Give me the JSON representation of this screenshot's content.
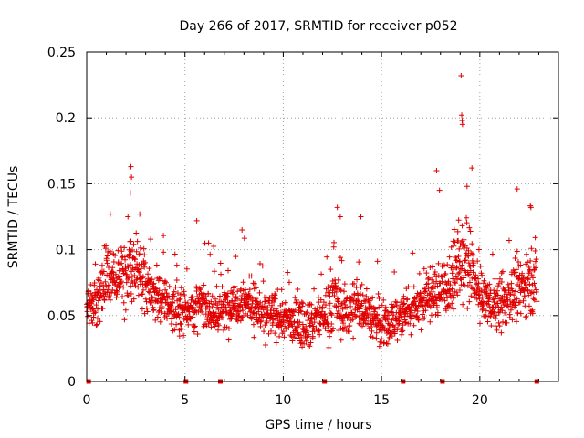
{
  "chart_data": {
    "type": "scatter",
    "title": "Day 266 of 2017, SRMTID for receiver p052",
    "xlabel": "GPS time / hours",
    "ylabel": "SRMTID / TECUs",
    "xlim": [
      0,
      24
    ],
    "ylim": [
      0,
      0.25
    ],
    "x_ticks": [
      0,
      5,
      10,
      15,
      20
    ],
    "x_tick_labels": [
      "0",
      "5",
      "10",
      "15",
      "20"
    ],
    "y_ticks": [
      0,
      0.05,
      0.1,
      0.15,
      0.2,
      0.25
    ],
    "y_tick_labels": [
      "0",
      "0.05",
      "0.1",
      "0.15",
      "0.2",
      "0.25"
    ],
    "grid": true,
    "marker": "+",
    "marker_color": "#e00000",
    "series": [
      {
        "name": "SRMTID",
        "profile_x": [
          0,
          0.3,
          0.7,
          1.0,
          1.3,
          1.7,
          2.0,
          2.3,
          2.6,
          3.0,
          3.5,
          4.0,
          4.5,
          5.0,
          5.5,
          6.0,
          6.5,
          7.0,
          7.5,
          8.0,
          8.5,
          9.0,
          9.5,
          10.0,
          10.5,
          11.0,
          11.5,
          12.0,
          12.3,
          12.6,
          13.0,
          13.5,
          14.0,
          14.5,
          15.0,
          15.5,
          16.0,
          16.5,
          17.0,
          17.5,
          18.0,
          18.5,
          19.0,
          19.5,
          20.0,
          20.5,
          21.0,
          21.5,
          22.0,
          22.5,
          22.9
        ],
        "profile_mean": [
          0.065,
          0.058,
          0.065,
          0.085,
          0.075,
          0.08,
          0.085,
          0.09,
          0.085,
          0.07,
          0.065,
          0.06,
          0.055,
          0.057,
          0.055,
          0.06,
          0.05,
          0.055,
          0.06,
          0.062,
          0.058,
          0.05,
          0.05,
          0.048,
          0.045,
          0.045,
          0.045,
          0.05,
          0.055,
          0.065,
          0.05,
          0.055,
          0.06,
          0.05,
          0.04,
          0.045,
          0.05,
          0.055,
          0.06,
          0.065,
          0.07,
          0.075,
          0.09,
          0.085,
          0.065,
          0.06,
          0.055,
          0.065,
          0.07,
          0.075,
          0.08
        ],
        "profile_spread": [
          0.012,
          0.012,
          0.014,
          0.018,
          0.016,
          0.016,
          0.02,
          0.018,
          0.018,
          0.014,
          0.012,
          0.012,
          0.012,
          0.012,
          0.012,
          0.012,
          0.012,
          0.012,
          0.012,
          0.012,
          0.012,
          0.012,
          0.012,
          0.012,
          0.012,
          0.012,
          0.012,
          0.012,
          0.016,
          0.018,
          0.014,
          0.014,
          0.016,
          0.012,
          0.012,
          0.012,
          0.012,
          0.012,
          0.012,
          0.014,
          0.016,
          0.016,
          0.02,
          0.02,
          0.014,
          0.012,
          0.014,
          0.014,
          0.016,
          0.016,
          0.016
        ],
        "outliers": [
          [
            2.25,
            0.163
          ],
          [
            2.28,
            0.155
          ],
          [
            2.22,
            0.143
          ],
          [
            2.1,
            0.125
          ],
          [
            7.9,
            0.115
          ],
          [
            5.6,
            0.122
          ],
          [
            6.2,
            0.105
          ],
          [
            12.75,
            0.132
          ],
          [
            12.9,
            0.125
          ],
          [
            13.95,
            0.125
          ],
          [
            17.8,
            0.16
          ],
          [
            17.95,
            0.145
          ],
          [
            19.05,
            0.232
          ],
          [
            19.08,
            0.202
          ],
          [
            19.1,
            0.198
          ],
          [
            19.12,
            0.195
          ],
          [
            19.6,
            0.162
          ],
          [
            19.35,
            0.148
          ],
          [
            21.9,
            0.146
          ],
          [
            22.6,
            0.132
          ],
          [
            1.2,
            0.127
          ],
          [
            2.7,
            0.127
          ]
        ],
        "zero_points_x": [
          0.1,
          5.05,
          6.8,
          12.1,
          16.1,
          18.1,
          22.9
        ]
      }
    ]
  }
}
